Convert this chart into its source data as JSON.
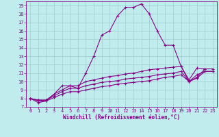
{
  "xlabel": "Windchill (Refroidissement éolien,°C)",
  "background_color": "#c0ecee",
  "line_color": "#880088",
  "grid_color": "#a0ccd0",
  "xlim": [
    -0.5,
    23.5
  ],
  "ylim": [
    7,
    19.5
  ],
  "xticks": [
    0,
    1,
    2,
    3,
    4,
    5,
    6,
    7,
    8,
    9,
    10,
    11,
    12,
    13,
    14,
    15,
    16,
    17,
    18,
    19,
    20,
    21,
    22,
    23
  ],
  "yticks": [
    7,
    8,
    9,
    10,
    11,
    12,
    13,
    14,
    15,
    16,
    17,
    18,
    19
  ],
  "lines": [
    {
      "x": [
        0,
        1,
        2,
        3,
        4,
        5,
        6,
        7,
        8,
        9,
        10,
        11,
        12,
        13,
        14,
        15,
        16,
        17,
        18,
        19,
        20,
        21,
        22
      ],
      "y": [
        8.0,
        7.5,
        7.7,
        8.5,
        9.5,
        9.5,
        9.2,
        11.0,
        13.0,
        15.5,
        16.0,
        17.8,
        18.8,
        18.8,
        19.2,
        18.0,
        16.0,
        14.3,
        14.3,
        11.8,
        10.0,
        10.5,
        11.5
      ]
    },
    {
      "x": [
        0,
        1,
        2,
        3,
        4,
        5,
        6,
        7,
        8,
        9,
        10,
        11,
        12,
        13,
        14,
        15,
        16,
        17,
        18,
        19,
        20,
        21,
        22,
        23
      ],
      "y": [
        8.0,
        7.8,
        7.8,
        8.5,
        9.0,
        9.5,
        9.5,
        10.0,
        10.2,
        10.4,
        10.6,
        10.7,
        10.9,
        11.0,
        11.2,
        11.4,
        11.5,
        11.6,
        11.7,
        11.8,
        10.2,
        11.6,
        11.5,
        11.5
      ]
    },
    {
      "x": [
        0,
        1,
        2,
        3,
        4,
        5,
        6,
        7,
        8,
        9,
        10,
        11,
        12,
        13,
        14,
        15,
        16,
        17,
        18,
        19,
        20,
        21,
        22,
        23
      ],
      "y": [
        8.0,
        7.8,
        7.8,
        8.3,
        8.8,
        9.2,
        9.2,
        9.5,
        9.7,
        9.9,
        10.0,
        10.1,
        10.3,
        10.4,
        10.5,
        10.6,
        10.8,
        10.9,
        11.0,
        11.2,
        10.0,
        10.8,
        11.2,
        11.2
      ]
    },
    {
      "x": [
        0,
        1,
        2,
        3,
        4,
        5,
        6,
        7,
        8,
        9,
        10,
        11,
        12,
        13,
        14,
        15,
        16,
        17,
        18,
        19,
        20,
        21,
        22,
        23
      ],
      "y": [
        8.0,
        7.7,
        7.7,
        8.1,
        8.5,
        8.8,
        8.8,
        9.0,
        9.2,
        9.4,
        9.5,
        9.7,
        9.8,
        9.9,
        10.0,
        10.1,
        10.3,
        10.5,
        10.6,
        10.8,
        10.0,
        10.4,
        11.2,
        11.2
      ]
    }
  ],
  "marker": "+",
  "markersize": 3.0,
  "linewidth": 0.8,
  "xlabel_fontsize": 5.5,
  "tick_fontsize": 5.0
}
